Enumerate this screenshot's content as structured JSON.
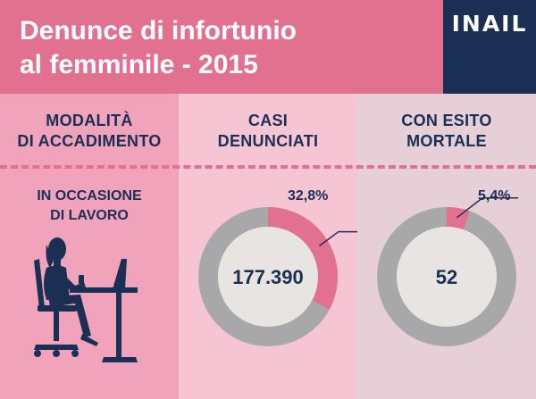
{
  "header": {
    "title_line1": "Denunce di infortunio",
    "title_line2": "al femminile - 2015",
    "logo": "INAIL"
  },
  "columns": {
    "c1_line1": "MODALITÀ",
    "c1_line2": "DI ACCADIMENTO",
    "c2_line1": "CASI",
    "c2_line2": "DENUNCIATI",
    "c3_line1": "CON ESITO",
    "c3_line2": "MORTALE"
  },
  "row": {
    "line1": "IN OCCASIONE",
    "line2": "DI LAVORO",
    "icon": "woman-at-desk-icon"
  },
  "colors": {
    "pink": "#e2718f",
    "navy": "#1b2f55",
    "grey": "#a8a8ab",
    "center": "#e8e4e2"
  },
  "chart_data": [
    {
      "type": "pie",
      "subtype": "donut",
      "share": 32.8,
      "share_label": "32,8%",
      "center_value": "177.390",
      "center_number": 177390
    },
    {
      "type": "pie",
      "subtype": "donut",
      "share": 5.4,
      "share_label": "5,4%",
      "center_value": "52",
      "center_number": 52
    }
  ]
}
